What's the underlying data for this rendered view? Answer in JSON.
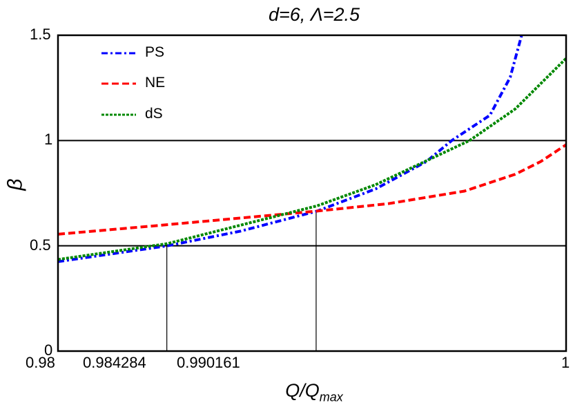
{
  "chart_data": {
    "type": "line",
    "title": "d=6, Λ=2.5",
    "xlabel": "Q/Q_max",
    "xlabel_main": "Q/Q",
    "xlabel_sub": "max",
    "ylabel": "β",
    "xlim": [
      0.98,
      1.0
    ],
    "ylim": [
      0,
      1.5
    ],
    "xticks": [
      "0.98",
      "0.984284",
      "0.990161",
      "1"
    ],
    "yticks": [
      "0",
      "0.5",
      "1",
      "1.5"
    ],
    "hlines": [
      0.5,
      1.0
    ],
    "vlines": [
      {
        "x": 0.984284,
        "ytop": 0.5
      },
      {
        "x": 0.990161,
        "ytop": 0.665
      }
    ],
    "legend_position": "upper-left",
    "series": [
      {
        "name": "PS",
        "color": "#0000ff",
        "style": "dash-dot",
        "x": [
          0.98,
          0.9843,
          0.9872,
          0.9902,
          0.9925,
          0.9945,
          0.9955,
          0.997,
          0.9978,
          0.99825
        ],
        "y": [
          0.425,
          0.5,
          0.57,
          0.665,
          0.77,
          0.9,
          1.0,
          1.12,
          1.3,
          1.5
        ]
      },
      {
        "name": "NE",
        "color": "#ff0000",
        "style": "dashed",
        "x": [
          0.98,
          0.984,
          0.9902,
          0.993,
          0.996,
          0.998,
          0.999,
          1.0
        ],
        "y": [
          0.555,
          0.597,
          0.665,
          0.7,
          0.76,
          0.84,
          0.9,
          0.98
        ]
      },
      {
        "name": "dS",
        "color": "#008800",
        "style": "dotted",
        "x": [
          0.98,
          0.9843,
          0.9902,
          0.9925,
          0.9962,
          0.998,
          1.0
        ],
        "y": [
          0.435,
          0.51,
          0.69,
          0.79,
          1.0,
          1.15,
          1.39
        ]
      }
    ]
  }
}
